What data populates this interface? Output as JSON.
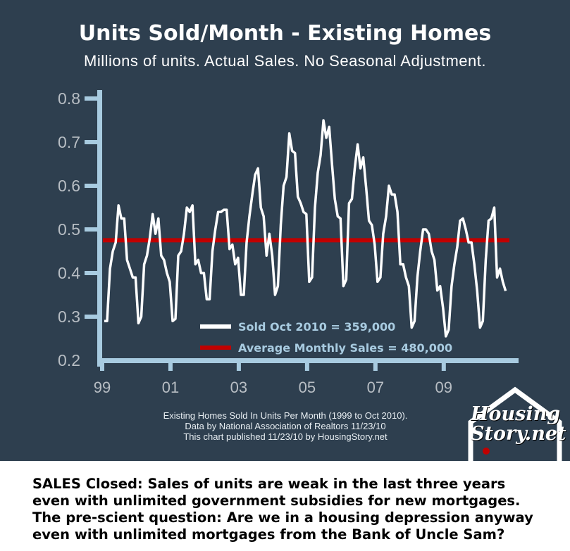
{
  "header": {
    "title": "Units Sold/Month - Existing Homes",
    "subtitle": "Millions of units. Actual Sales. No Seasonal Adjustment."
  },
  "colors": {
    "background": "#2e3f4f",
    "axis": "#a8cbe0",
    "series": "#ffffff",
    "average": "#c00000",
    "legend_text": "#a8cbe0"
  },
  "chart_data": {
    "type": "line",
    "title": "Units Sold/Month - Existing Homes",
    "ylabel": "Millions of units",
    "ylim": [
      0.2,
      0.8
    ],
    "yticks": [
      "0.2",
      "0.3",
      "0.4",
      "0.5",
      "0.6",
      "0.7",
      "0.8"
    ],
    "xticks": [
      "99",
      "01",
      "03",
      "05",
      "07",
      "09"
    ],
    "x_start": "1999-01",
    "x_end": "2010-10",
    "legend": [
      "Sold Oct 2010 = 359,000",
      "Average Monthly Sales = 480,000"
    ],
    "legend_placement": "bottom-center",
    "average": 0.48,
    "series": [
      {
        "name": "Sold",
        "values": [
          0.29,
          0.29,
          0.41,
          0.45,
          0.47,
          0.555,
          0.525,
          0.525,
          0.43,
          0.41,
          0.39,
          0.39,
          0.285,
          0.3,
          0.42,
          0.44,
          0.48,
          0.535,
          0.49,
          0.525,
          0.44,
          0.43,
          0.4,
          0.38,
          0.29,
          0.295,
          0.44,
          0.45,
          0.49,
          0.55,
          0.54,
          0.555,
          0.42,
          0.43,
          0.4,
          0.4,
          0.34,
          0.34,
          0.45,
          0.5,
          0.54,
          0.54,
          0.545,
          0.545,
          0.455,
          0.465,
          0.42,
          0.435,
          0.35,
          0.35,
          0.47,
          0.53,
          0.58,
          0.625,
          0.64,
          0.55,
          0.53,
          0.44,
          0.49,
          0.44,
          0.35,
          0.37,
          0.51,
          0.6,
          0.62,
          0.72,
          0.68,
          0.675,
          0.575,
          0.56,
          0.54,
          0.535,
          0.38,
          0.39,
          0.55,
          0.63,
          0.67,
          0.75,
          0.71,
          0.735,
          0.65,
          0.57,
          0.53,
          0.525,
          0.37,
          0.385,
          0.56,
          0.57,
          0.64,
          0.695,
          0.64,
          0.665,
          0.595,
          0.52,
          0.51,
          0.465,
          0.38,
          0.39,
          0.49,
          0.53,
          0.6,
          0.58,
          0.58,
          0.54,
          0.42,
          0.42,
          0.39,
          0.37,
          0.275,
          0.29,
          0.39,
          0.45,
          0.5,
          0.5,
          0.49,
          0.45,
          0.43,
          0.36,
          0.37,
          0.32,
          0.255,
          0.27,
          0.37,
          0.42,
          0.46,
          0.52,
          0.525,
          0.5,
          0.47,
          0.47,
          0.42,
          0.36,
          0.275,
          0.29,
          0.43,
          0.52,
          0.525,
          0.55,
          0.39,
          0.41,
          0.38,
          0.359
        ]
      }
    ]
  },
  "notes": [
    "Existing Homes Sold In Units Per Month (1999 to Oct 2010).",
    "Data by National Association of Realtors 11/23/10",
    "This chart published 11/23/10 by HousingStory.net"
  ],
  "logo": {
    "line1": "Housing",
    "line2": "Story.net"
  },
  "caption": "SALES Closed: Sales of units are weak in the last three years even with unlimited government subsidies for new mortgages. The pre-scient question: Are we in a housing depression anyway even with unlimited mortgages from the Bank of Uncle Sam?"
}
